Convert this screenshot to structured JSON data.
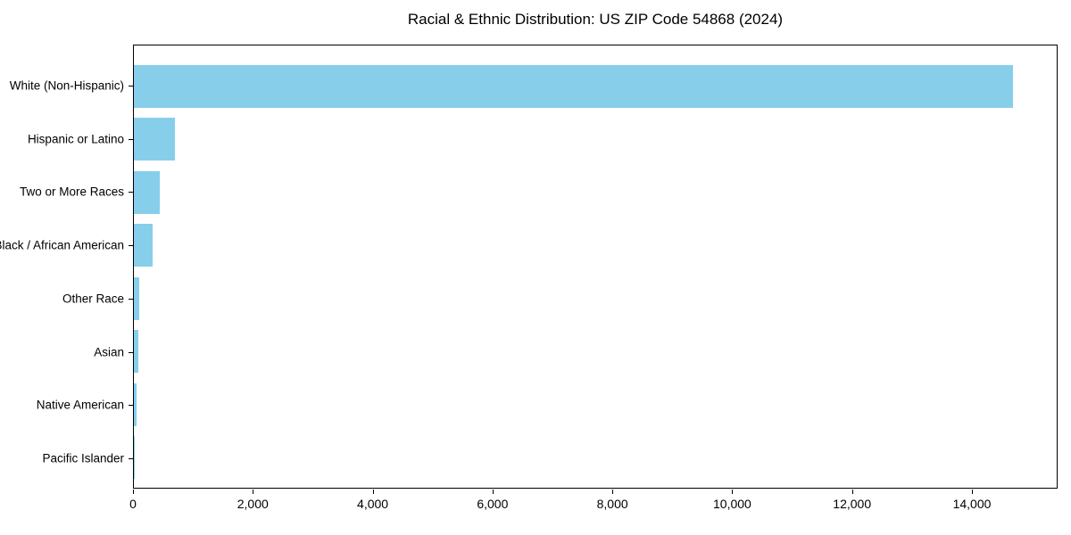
{
  "chart_data": {
    "type": "bar",
    "orientation": "horizontal",
    "title": "Racial & Ethnic Distribution: US ZIP Code 54868 (2024)",
    "categories": [
      "White (Non-Hispanic)",
      "Hispanic or Latino",
      "Two or More Races",
      "Black / African American",
      "Other Race",
      "Asian",
      "Native American",
      "Pacific Islander"
    ],
    "values": [
      14700,
      680,
      440,
      320,
      90,
      70,
      50,
      10
    ],
    "xlabel": "",
    "ylabel": "",
    "xlim": [
      0,
      15430
    ],
    "x_ticks": [
      0,
      2000,
      4000,
      6000,
      8000,
      10000,
      12000,
      14000
    ],
    "x_tick_labels": [
      "0",
      "2,000",
      "4,000",
      "6,000",
      "8,000",
      "10,000",
      "12,000",
      "14,000"
    ],
    "bar_color": "#87CEEB",
    "axis_color": "#000000",
    "background_color": "#ffffff",
    "grid": false,
    "legend": null
  }
}
